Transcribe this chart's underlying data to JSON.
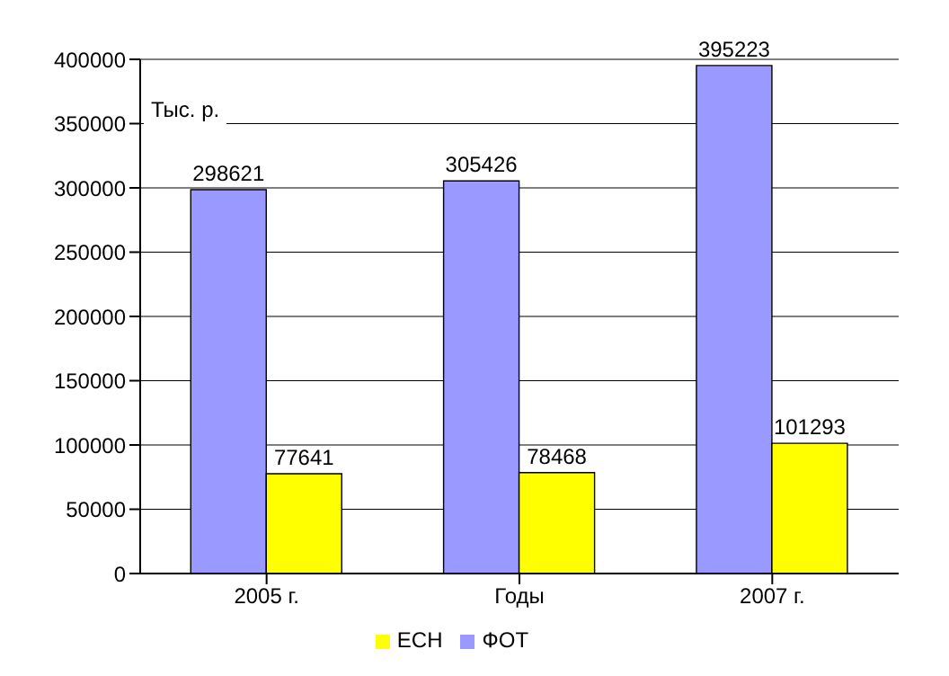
{
  "chart_data": {
    "type": "bar",
    "ylabel": "Тыс. р.",
    "categories": [
      "2005 г.",
      "Годы",
      "2007 г."
    ],
    "series": [
      {
        "name": "ФОТ",
        "color": "#9999ff",
        "values": [
          298621,
          305426,
          395223
        ]
      },
      {
        "name": "ЕСН",
        "color": "#ffff00",
        "values": [
          77641,
          78468,
          101293
        ]
      }
    ],
    "ylim": [
      0,
      400000
    ],
    "yticks": [
      0,
      50000,
      100000,
      150000,
      200000,
      250000,
      300000,
      350000,
      400000
    ],
    "grid": "y",
    "data_labels": true,
    "legend": "bottom"
  }
}
